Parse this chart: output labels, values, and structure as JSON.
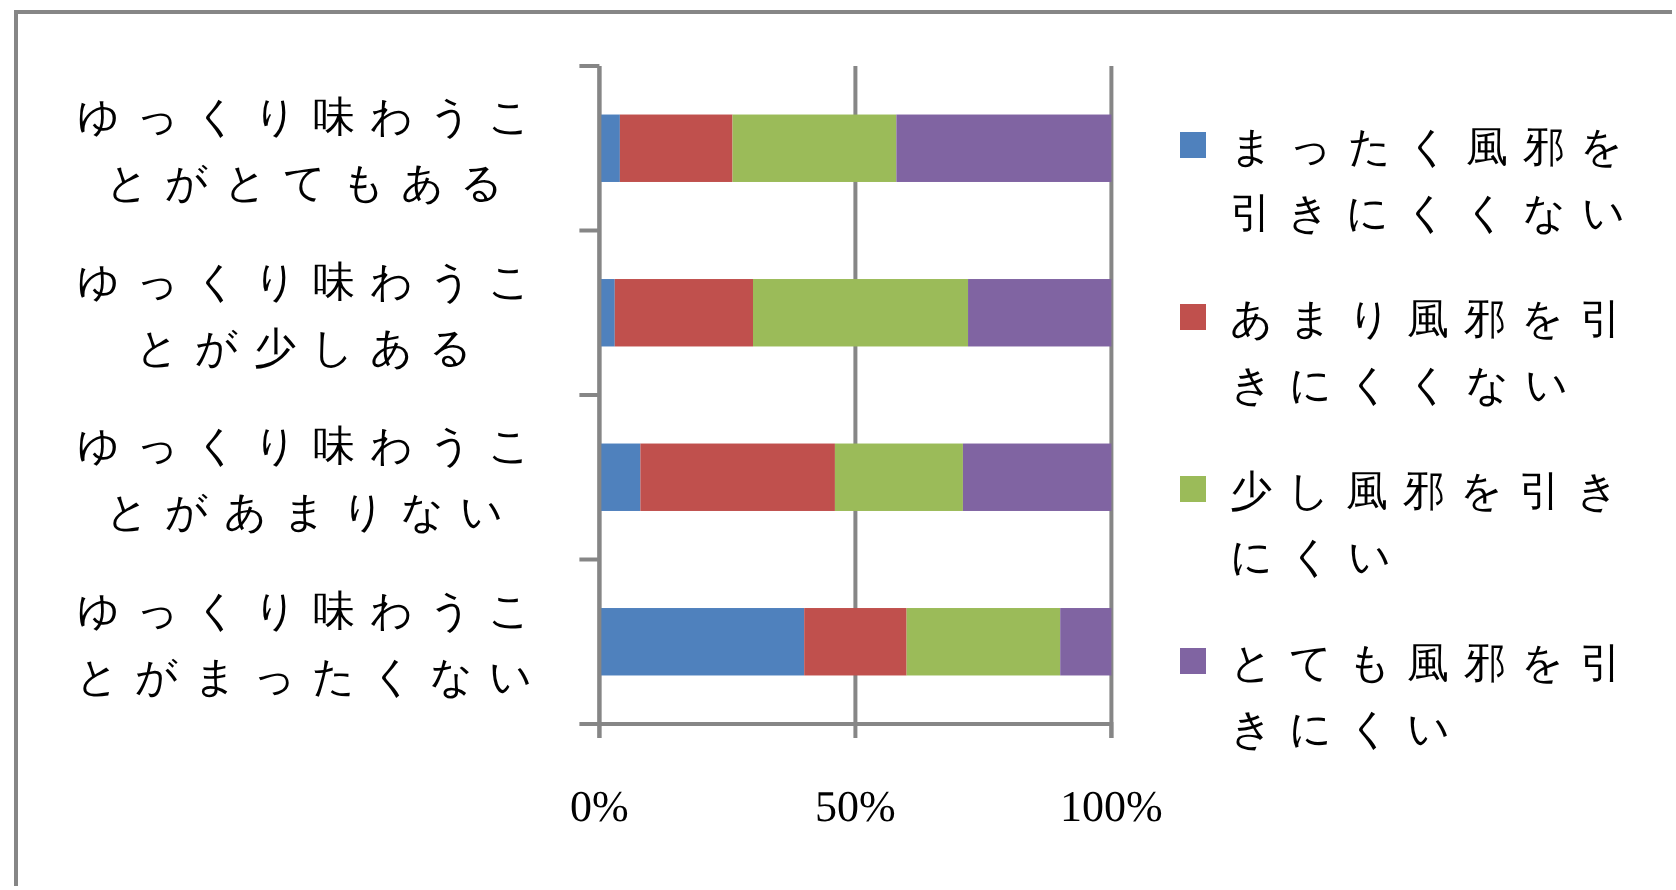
{
  "chart_data": {
    "type": "bar",
    "orientation": "horizontal",
    "stacked": true,
    "categories": [
      "ゆっくり味わうことがとてもある",
      "ゆっくり味わうことが少しある",
      "ゆっくり味わうことがあまりない",
      "ゆっくり味わうことがまったくない"
    ],
    "series": [
      {
        "name": "まったく風邪を引きにくくない",
        "color": "#4f81bd",
        "values": [
          4,
          3,
          8,
          40
        ]
      },
      {
        "name": "あまり風邪を引きにくくない",
        "color": "#c0504d",
        "values": [
          22,
          27,
          38,
          20
        ]
      },
      {
        "name": "少し風邪を引きにくい",
        "color": "#9bbb59",
        "values": [
          32,
          42,
          25,
          30
        ]
      },
      {
        "name": "とても風邪を引きにくい",
        "color": "#8064a2",
        "values": [
          42,
          28,
          29,
          10
        ]
      }
    ],
    "xlim": [
      0,
      100
    ],
    "xticks": [
      {
        "value": 0,
        "label": "0%"
      },
      {
        "value": 50,
        "label": "50%"
      },
      {
        "value": 100,
        "label": "100%"
      }
    ],
    "grid": "x",
    "legend": "right"
  }
}
